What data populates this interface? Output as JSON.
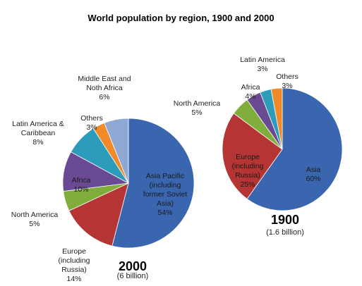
{
  "chart_data": {
    "title": "World population by region, 1900  and 2000",
    "charts": [
      {
        "type": "pie",
        "year": "2000",
        "total": "(6 billion)",
        "slices": [
          {
            "label": "Asia Pacific (including\nformer Soviet\nAsia)",
            "value": 54,
            "value_label": "54%",
            "color": "#3a66b0"
          },
          {
            "label": "Europe\n(including\nRussia)",
            "value": 14,
            "value_label": "14%",
            "color": "#b53434"
          },
          {
            "label": "North America",
            "value": 5,
            "value_label": "5%",
            "color": "#7fae3c"
          },
          {
            "label": "Africa",
            "value": 10,
            "value_label": "10%",
            "color": "#6a4b93"
          },
          {
            "label": "Latin America &\nCaribbean",
            "value": 8,
            "value_label": "8%",
            "color": "#2d9bba"
          },
          {
            "label": "Others",
            "value": 3,
            "value_label": "3%",
            "color": "#f08a2b"
          },
          {
            "label": "Middle East  and\nNoth Africa",
            "value": 6,
            "value_label": "6%",
            "color": "#8fa8d4"
          }
        ]
      },
      {
        "type": "pie",
        "year": "1900",
        "total": "(1.6 billion)",
        "slices": [
          {
            "label": "Asia",
            "value": 60,
            "value_label": "60%",
            "color": "#3a66b0"
          },
          {
            "label": "Europe\n(including\nRussia)",
            "value": 25,
            "value_label": "25%",
            "color": "#b53434"
          },
          {
            "label": "North America",
            "value": 5,
            "value_label": "5%",
            "color": "#7fae3c"
          },
          {
            "label": "Africa",
            "value": 4,
            "value_label": "4%",
            "color": "#6a4b93"
          },
          {
            "label": "Latin America",
            "value": 3,
            "value_label": "3%",
            "color": "#2d9bba"
          },
          {
            "label": "Others",
            "value": 3,
            "value_label": "3%",
            "color": "#f08a2b"
          }
        ]
      }
    ]
  }
}
